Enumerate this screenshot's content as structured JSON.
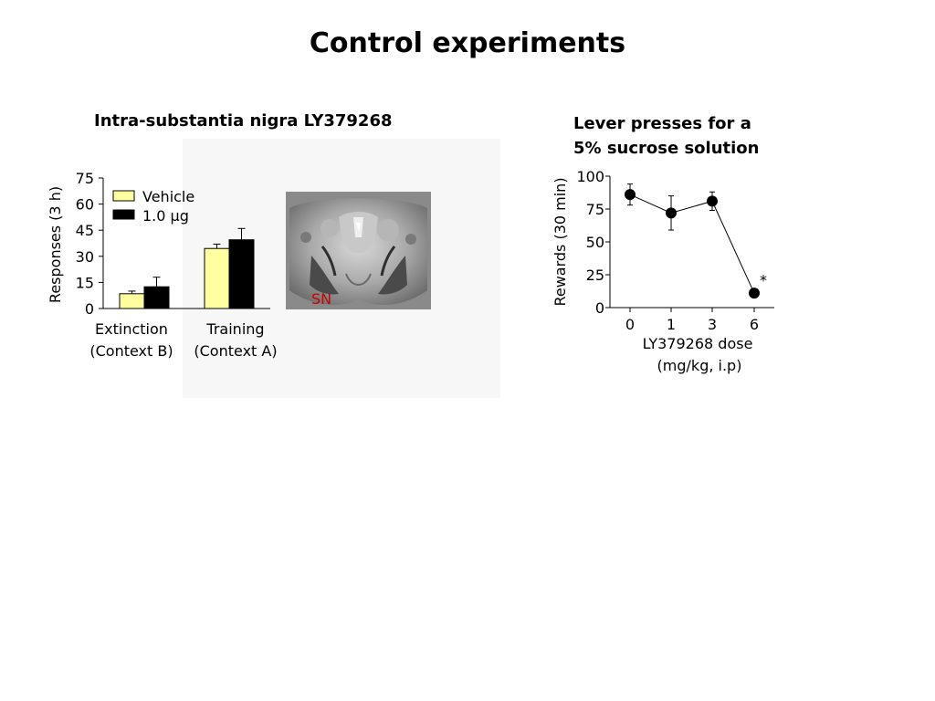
{
  "title": "Control experiments",
  "chart_data": [
    {
      "type": "bar",
      "title": "Intra-substantia nigra LY379268",
      "ylabel": "Responses (3 h)",
      "xlabel": "",
      "ylim": [
        0,
        75
      ],
      "yticks": [
        "0",
        "15",
        "30",
        "45",
        "60",
        "75"
      ],
      "categories": [
        [
          "Extinction",
          "(Context B)"
        ],
        [
          "Training",
          "(Context A)"
        ]
      ],
      "series": [
        {
          "name": "Vehicle",
          "values": [
            8.5,
            34.5
          ],
          "errors": [
            1.5,
            2.5
          ],
          "color": "#ffffa0"
        },
        {
          "name": "1.0 μg",
          "values": [
            12.5,
            39.5
          ],
          "errors": [
            5.5,
            6.5
          ],
          "color": "#000000"
        }
      ],
      "legend": "top-left",
      "grid": false,
      "image_label": "SN",
      "image_label_color": "#cc0000"
    },
    {
      "type": "line",
      "title": "Lever presses for a 5% sucrose solution",
      "title_lines": [
        "Lever presses for a",
        "5% sucrose solution"
      ],
      "ylabel": "Rewards (30 min)",
      "xlabel_lines": [
        "LY379268 dose",
        "(mg/kg, i.p)"
      ],
      "ylim": [
        0,
        100
      ],
      "yticks": [
        "0",
        "25",
        "50",
        "75",
        "100"
      ],
      "x": [
        "0",
        "1",
        "3",
        "6"
      ],
      "series": [
        {
          "values": [
            86,
            72,
            81,
            11
          ],
          "errors": [
            8,
            13,
            7,
            2
          ]
        }
      ],
      "annotations": [
        {
          "x": "6",
          "text": "*"
        }
      ],
      "grid": false,
      "legend": "none"
    }
  ]
}
